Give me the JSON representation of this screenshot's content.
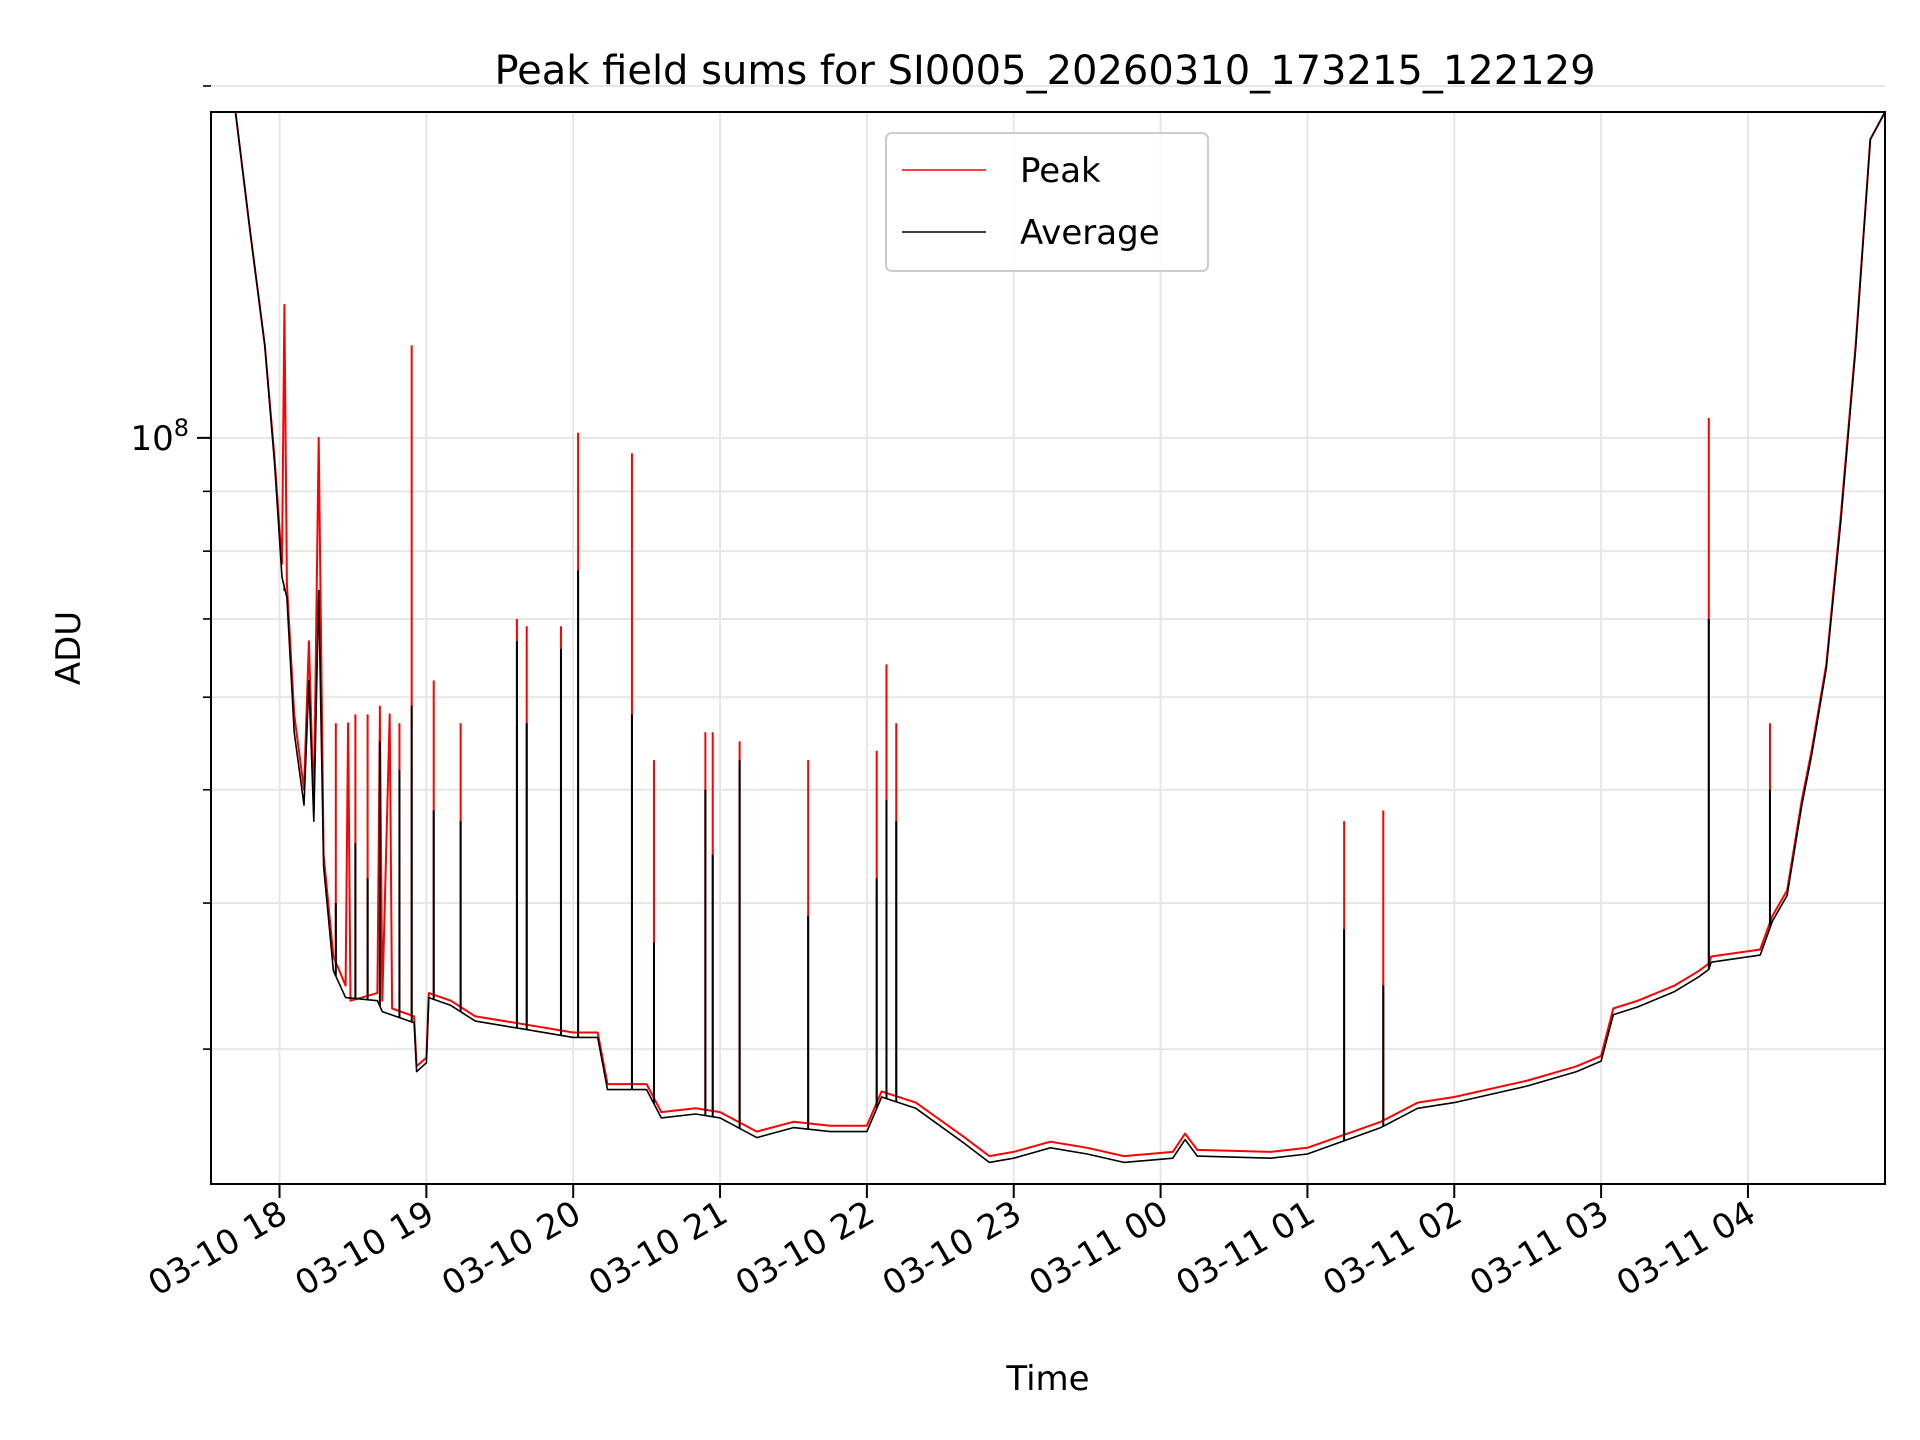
{
  "chart_data": {
    "type": "line",
    "title": "Peak field sums for SI0005_20260310_173215_122129",
    "xlabel": "Time",
    "ylabel": "ADU",
    "yscale": "log",
    "xlim": [
      "2026-03-10 17:32",
      "2026-03-11 04:56"
    ],
    "ylim": [
      23000000,
      190000000
    ],
    "grid": true,
    "legend_position": "top-center",
    "x_tick_labels": [
      "03-10 18",
      "03-10 19",
      "03-10 20",
      "03-10 21",
      "03-10 22",
      "03-10 23",
      "03-11 00",
      "03-11 01",
      "03-11 02",
      "03-11 03",
      "03-11 04"
    ],
    "x_ticks": [
      "2026-03-10 18:00",
      "2026-03-10 19:00",
      "2026-03-10 20:00",
      "2026-03-10 21:00",
      "2026-03-10 22:00",
      "2026-03-10 23:00",
      "2026-03-11 00:00",
      "2026-03-11 01:00",
      "2026-03-11 02:00",
      "2026-03-11 03:00",
      "2026-03-11 04:00"
    ],
    "y_major_ticks": [
      {
        "value": 100000000,
        "base": "10",
        "exponent": "8"
      }
    ],
    "y_minor_ticks": [
      30000000,
      40000000,
      50000000,
      60000000,
      70000000,
      80000000,
      90000000,
      200000000
    ],
    "series": [
      {
        "name": "Peak",
        "color": "#ff0000",
        "points": [
          [
            "2026-03-10 17:32",
            190000000
          ],
          [
            "2026-03-10 17:42",
            190000000
          ],
          [
            "2026-03-10 17:48",
            150000000
          ],
          [
            "2026-03-10 17:54",
            120000000
          ],
          [
            "2026-03-10 17:58",
            96000000
          ],
          [
            "2026-03-10 18:01",
            78000000
          ],
          [
            "2026-03-10 18:02",
            130000000
          ],
          [
            "2026-03-10 18:03",
            75000000
          ],
          [
            "2026-03-10 18:06",
            58000000
          ],
          [
            "2026-03-10 18:10",
            50000000
          ],
          [
            "2026-03-10 18:12",
            67000000
          ],
          [
            "2026-03-10 18:14",
            48000000
          ],
          [
            "2026-03-10 18:16",
            100000000
          ],
          [
            "2026-03-10 18:18",
            44000000
          ],
          [
            "2026-03-10 18:22",
            36000000
          ],
          [
            "2026-03-10 18:27",
            34000000
          ],
          [
            "2026-03-10 18:28",
            57000000
          ],
          [
            "2026-03-10 18:29",
            33000000
          ],
          [
            "2026-03-10 18:40",
            33500000
          ],
          [
            "2026-03-10 18:41",
            58000000
          ],
          [
            "2026-03-10 18:42",
            33000000
          ],
          [
            "2026-03-10 18:45",
            58000000
          ],
          [
            "2026-03-10 18:46",
            32500000
          ],
          [
            "2026-03-10 18:55",
            32000000
          ],
          [
            "2026-03-10 18:56",
            29000000
          ],
          [
            "2026-03-10 19:00",
            29500000
          ],
          [
            "2026-03-10 19:01",
            33500000
          ],
          [
            "2026-03-10 19:10",
            33000000
          ],
          [
            "2026-03-10 19:20",
            32000000
          ],
          [
            "2026-03-10 19:40",
            31500000
          ],
          [
            "2026-03-10 20:00",
            31000000
          ],
          [
            "2026-03-10 20:10",
            31000000
          ],
          [
            "2026-03-10 20:14",
            28000000
          ],
          [
            "2026-03-10 20:30",
            28000000
          ],
          [
            "2026-03-10 20:36",
            26500000
          ],
          [
            "2026-03-10 20:50",
            26700000
          ],
          [
            "2026-03-10 21:00",
            26500000
          ],
          [
            "2026-03-10 21:15",
            25500000
          ],
          [
            "2026-03-10 21:30",
            26000000
          ],
          [
            "2026-03-10 21:45",
            25800000
          ],
          [
            "2026-03-10 22:00",
            25800000
          ],
          [
            "2026-03-10 22:06",
            27600000
          ],
          [
            "2026-03-10 22:20",
            27000000
          ],
          [
            "2026-03-10 22:40",
            25200000
          ],
          [
            "2026-03-10 22:50",
            24300000
          ],
          [
            "2026-03-10 23:00",
            24500000
          ],
          [
            "2026-03-10 23:15",
            25000000
          ],
          [
            "2026-03-10 23:30",
            24700000
          ],
          [
            "2026-03-10 23:45",
            24300000
          ],
          [
            "2026-03-11 00:05",
            24500000
          ],
          [
            "2026-03-11 00:10",
            25400000
          ],
          [
            "2026-03-11 00:15",
            24600000
          ],
          [
            "2026-03-11 00:45",
            24500000
          ],
          [
            "2026-03-11 01:00",
            24700000
          ],
          [
            "2026-03-11 01:30",
            26000000
          ],
          [
            "2026-03-11 01:45",
            27000000
          ],
          [
            "2026-03-11 02:00",
            27300000
          ],
          [
            "2026-03-11 02:30",
            28200000
          ],
          [
            "2026-03-11 02:50",
            29000000
          ],
          [
            "2026-03-11 03:00",
            29600000
          ],
          [
            "2026-03-11 03:05",
            32500000
          ],
          [
            "2026-03-11 03:15",
            33000000
          ],
          [
            "2026-03-11 03:30",
            34000000
          ],
          [
            "2026-03-11 03:40",
            35000000
          ],
          [
            "2026-03-11 03:44",
            35500000
          ],
          [
            "2026-03-11 03:45",
            36000000
          ],
          [
            "2026-03-11 04:05",
            36500000
          ],
          [
            "2026-03-11 04:10",
            39000000
          ],
          [
            "2026-03-11 04:16",
            41000000
          ],
          [
            "2026-03-11 04:22",
            49000000
          ],
          [
            "2026-03-11 04:26",
            54000000
          ],
          [
            "2026-03-11 04:32",
            64000000
          ],
          [
            "2026-03-11 04:38",
            86000000
          ],
          [
            "2026-03-11 04:44",
            120000000
          ],
          [
            "2026-03-11 04:50",
            180000000
          ],
          [
            "2026-03-11 04:56",
            190000000
          ]
        ],
        "spikes": [
          [
            "2026-03-10 18:02",
            130000000
          ],
          [
            "2026-03-10 18:16",
            100000000
          ],
          [
            "2026-03-10 18:23",
            57000000
          ],
          [
            "2026-03-10 18:31",
            58000000
          ],
          [
            "2026-03-10 18:36",
            58000000
          ],
          [
            "2026-03-10 18:41",
            59000000
          ],
          [
            "2026-03-10 18:49",
            57000000
          ],
          [
            "2026-03-10 18:54",
            120000000
          ],
          [
            "2026-03-10 19:03",
            62000000
          ],
          [
            "2026-03-10 19:14",
            57000000
          ],
          [
            "2026-03-10 19:37",
            70000000
          ],
          [
            "2026-03-10 19:41",
            69000000
          ],
          [
            "2026-03-10 19:55",
            69000000
          ],
          [
            "2026-03-10 20:02",
            101000000
          ],
          [
            "2026-03-10 20:24",
            97000000
          ],
          [
            "2026-03-10 20:33",
            53000000
          ],
          [
            "2026-03-10 20:54",
            56000000
          ],
          [
            "2026-03-10 20:57",
            56000000
          ],
          [
            "2026-03-10 21:08",
            55000000
          ],
          [
            "2026-03-10 21:36",
            53000000
          ],
          [
            "2026-03-10 22:04",
            54000000
          ],
          [
            "2026-03-10 22:08",
            64000000
          ],
          [
            "2026-03-10 22:12",
            57000000
          ],
          [
            "2026-03-11 01:15",
            47000000
          ],
          [
            "2026-03-11 01:31",
            48000000
          ],
          [
            "2026-03-11 03:44",
            104000000
          ],
          [
            "2026-03-11 04:09",
            57000000
          ]
        ]
      },
      {
        "name": "Average",
        "color": "#000000",
        "points": [
          [
            "2026-03-10 17:32",
            190000000
          ],
          [
            "2026-03-10 17:42",
            190000000
          ],
          [
            "2026-03-10 17:48",
            150000000
          ],
          [
            "2026-03-10 17:54",
            120000000
          ],
          [
            "2026-03-10 17:58",
            95000000
          ],
          [
            "2026-03-10 18:01",
            76000000
          ],
          [
            "2026-03-10 18:03",
            73000000
          ],
          [
            "2026-03-10 18:06",
            56000000
          ],
          [
            "2026-03-10 18:10",
            48500000
          ],
          [
            "2026-03-10 18:12",
            62000000
          ],
          [
            "2026-03-10 18:14",
            47000000
          ],
          [
            "2026-03-10 18:16",
            74000000
          ],
          [
            "2026-03-10 18:18",
            43000000
          ],
          [
            "2026-03-10 18:22",
            35000000
          ],
          [
            "2026-03-10 18:27",
            33200000
          ],
          [
            "2026-03-10 18:40",
            33000000
          ],
          [
            "2026-03-10 18:42",
            32300000
          ],
          [
            "2026-03-10 18:55",
            31600000
          ],
          [
            "2026-03-10 18:56",
            28700000
          ],
          [
            "2026-03-10 19:00",
            29200000
          ],
          [
            "2026-03-10 19:01",
            33200000
          ],
          [
            "2026-03-10 19:10",
            32700000
          ],
          [
            "2026-03-10 19:20",
            31700000
          ],
          [
            "2026-03-10 19:40",
            31200000
          ],
          [
            "2026-03-10 20:00",
            30700000
          ],
          [
            "2026-03-10 20:10",
            30700000
          ],
          [
            "2026-03-10 20:14",
            27700000
          ],
          [
            "2026-03-10 20:30",
            27700000
          ],
          [
            "2026-03-10 20:36",
            26200000
          ],
          [
            "2026-03-10 20:50",
            26400000
          ],
          [
            "2026-03-10 21:00",
            26200000
          ],
          [
            "2026-03-10 21:15",
            25200000
          ],
          [
            "2026-03-10 21:30",
            25700000
          ],
          [
            "2026-03-10 21:45",
            25500000
          ],
          [
            "2026-03-10 22:00",
            25500000
          ],
          [
            "2026-03-10 22:06",
            27300000
          ],
          [
            "2026-03-10 22:20",
            26700000
          ],
          [
            "2026-03-10 22:40",
            24900000
          ],
          [
            "2026-03-10 22:50",
            24000000
          ],
          [
            "2026-03-10 23:00",
            24200000
          ],
          [
            "2026-03-10 23:15",
            24700000
          ],
          [
            "2026-03-10 23:30",
            24400000
          ],
          [
            "2026-03-10 23:45",
            24000000
          ],
          [
            "2026-03-11 00:05",
            24200000
          ],
          [
            "2026-03-11 00:10",
            25100000
          ],
          [
            "2026-03-11 00:15",
            24300000
          ],
          [
            "2026-03-11 00:45",
            24200000
          ],
          [
            "2026-03-11 01:00",
            24400000
          ],
          [
            "2026-03-11 01:30",
            25700000
          ],
          [
            "2026-03-11 01:45",
            26700000
          ],
          [
            "2026-03-11 02:00",
            27000000
          ],
          [
            "2026-03-11 02:30",
            27900000
          ],
          [
            "2026-03-11 02:50",
            28700000
          ],
          [
            "2026-03-11 03:00",
            29300000
          ],
          [
            "2026-03-11 03:05",
            32100000
          ],
          [
            "2026-03-11 03:15",
            32600000
          ],
          [
            "2026-03-11 03:30",
            33600000
          ],
          [
            "2026-03-11 03:40",
            34600000
          ],
          [
            "2026-03-11 03:44",
            35100000
          ],
          [
            "2026-03-11 03:45",
            35600000
          ],
          [
            "2026-03-11 04:05",
            36100000
          ],
          [
            "2026-03-11 04:10",
            38600000
          ],
          [
            "2026-03-11 04:16",
            40600000
          ],
          [
            "2026-03-11 04:22",
            48500000
          ],
          [
            "2026-03-11 04:26",
            53500000
          ],
          [
            "2026-03-11 04:32",
            63500000
          ],
          [
            "2026-03-11 04:38",
            85000000
          ],
          [
            "2026-03-11 04:44",
            119000000
          ],
          [
            "2026-03-11 04:50",
            180000000
          ],
          [
            "2026-03-11 04:56",
            190000000
          ]
        ],
        "spikes": [
          [
            "2026-03-10 18:02",
            74000000
          ],
          [
            "2026-03-10 18:16",
            74000000
          ],
          [
            "2026-03-10 18:23",
            40000000
          ],
          [
            "2026-03-10 18:31",
            45000000
          ],
          [
            "2026-03-10 18:36",
            42000000
          ],
          [
            "2026-03-10 18:41",
            55000000
          ],
          [
            "2026-03-10 18:49",
            52000000
          ],
          [
            "2026-03-10 18:54",
            59000000
          ],
          [
            "2026-03-10 19:03",
            48000000
          ],
          [
            "2026-03-10 19:14",
            47000000
          ],
          [
            "2026-03-10 19:37",
            67000000
          ],
          [
            "2026-03-10 19:41",
            57000000
          ],
          [
            "2026-03-10 19:55",
            66000000
          ],
          [
            "2026-03-10 20:02",
            77000000
          ],
          [
            "2026-03-10 20:24",
            58000000
          ],
          [
            "2026-03-10 20:33",
            37000000
          ],
          [
            "2026-03-10 20:54",
            50000000
          ],
          [
            "2026-03-10 20:57",
            44000000
          ],
          [
            "2026-03-10 21:08",
            53000000
          ],
          [
            "2026-03-10 21:36",
            39000000
          ],
          [
            "2026-03-10 22:04",
            42000000
          ],
          [
            "2026-03-10 22:08",
            49000000
          ],
          [
            "2026-03-10 22:12",
            47000000
          ],
          [
            "2026-03-11 01:15",
            38000000
          ],
          [
            "2026-03-11 01:31",
            34000000
          ],
          [
            "2026-03-11 03:44",
            70000000
          ],
          [
            "2026-03-11 04:09",
            50000000
          ]
        ]
      }
    ]
  }
}
